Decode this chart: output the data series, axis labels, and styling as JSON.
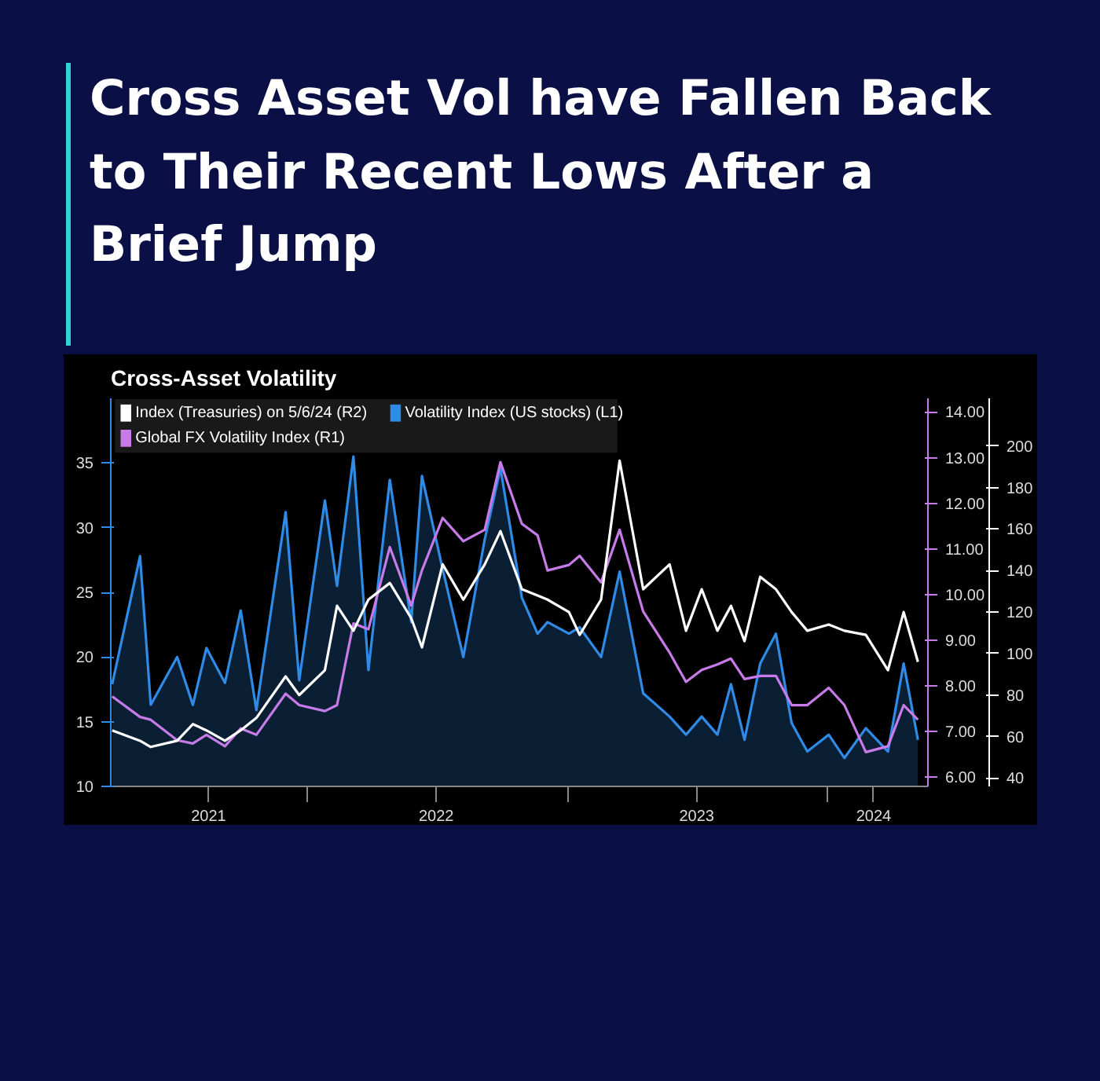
{
  "chart_data": {
    "type": "line",
    "title": "Cross Asset Vol have Fallen Back to Their Recent Lows After a Brief Jump",
    "subtitle": "Cross-Asset Volatility",
    "x": [
      "2021-04-03",
      "2021-05-12",
      "2021-05-27",
      "2021-07-03",
      "2021-07-25",
      "2021-08-13",
      "2021-09-08",
      "2021-09-30",
      "2021-10-22",
      "2021-12-02",
      "2021-12-21",
      "2022-01-26",
      "2022-02-12",
      "2022-03-07",
      "2022-03-28",
      "2022-04-27",
      "2022-05-27",
      "2022-06-11",
      "2022-07-10",
      "2022-08-08",
      "2022-09-07",
      "2022-09-29",
      "2022-10-29",
      "2022-11-20",
      "2022-12-04",
      "2023-01-03",
      "2023-01-18",
      "2023-02-17",
      "2023-03-15",
      "2023-04-17",
      "2023-05-24",
      "2023-06-16",
      "2023-07-08",
      "2023-07-30",
      "2023-08-18",
      "2023-09-06",
      "2023-09-28",
      "2023-10-20",
      "2023-11-11",
      "2023-12-03",
      "2024-01-02",
      "2024-01-24",
      "2024-02-23",
      "2024-03-25",
      "2024-04-16",
      "2024-05-06"
    ],
    "series": [
      {
        "name": "Index (Treasuries) on 5/6/24 (R2)",
        "color": "#ffffff",
        "axis": "y3",
        "values": [
          63,
          58,
          55,
          58,
          66,
          63,
          58,
          63,
          69,
          89,
          80,
          92,
          123,
          111,
          126,
          134,
          117,
          103,
          143,
          126,
          143,
          159,
          131,
          128,
          126,
          120,
          109,
          126,
          193,
          131,
          143,
          111,
          131,
          111,
          123,
          106,
          137,
          131,
          120,
          111,
          114,
          111,
          109,
          92,
          120,
          96
        ]
      },
      {
        "name": "Volatility Index (US stocks) (L1)",
        "color": "#2f8be6",
        "type": "area",
        "values": [
          17.9,
          27.8,
          16.3,
          20,
          16.3,
          20.7,
          18,
          23.6,
          15.9,
          31.2,
          18.2,
          32.1,
          25.5,
          35.5,
          19,
          33.7,
          22.7,
          34,
          26.8,
          20,
          29.1,
          34.6,
          24.6,
          21.8,
          22.7,
          21.8,
          22.3,
          20,
          26.6,
          17.2,
          15.4,
          14,
          15.4,
          14,
          17.9,
          13.6,
          19.5,
          21.8,
          14.9,
          12.7,
          14,
          12.2,
          14.5,
          12.7,
          19.5,
          13.6
        ]
      },
      {
        "name": "Global FX Volatility Index  (R1)",
        "color": "#c77be8",
        "axis": "y2",
        "values": [
          7.77,
          7.32,
          7.26,
          6.81,
          6.74,
          6.93,
          6.68,
          7.07,
          6.93,
          7.83,
          7.58,
          7.45,
          7.58,
          9.37,
          9.24,
          11.04,
          9.76,
          10.53,
          11.68,
          11.17,
          11.42,
          12.9,
          11.55,
          11.3,
          10.53,
          10.65,
          10.85,
          10.27,
          11.42,
          9.63,
          8.73,
          8.09,
          8.35,
          8.47,
          8.6,
          8.15,
          8.22,
          8.22,
          7.58,
          7.58,
          7.96,
          7.58,
          6.55,
          6.68,
          7.58,
          7.26
        ]
      }
    ],
    "xlim": [
      "2021-04-01",
      "2024-05-20"
    ],
    "xticks": [
      {
        "value": "2021-08-16",
        "label": "2021"
      },
      {
        "value": "2022-01-01",
        "label": null
      },
      {
        "value": "2022-07-01",
        "label": "2022"
      },
      {
        "value": "2023-01-01",
        "label": null
      },
      {
        "value": "2023-07-01",
        "label": "2023"
      },
      {
        "value": "2024-01-01",
        "label": null
      },
      {
        "value": "2024-03-05",
        "label": "2024"
      }
    ],
    "ylim": [
      10,
      40
    ],
    "yticks": [
      10,
      15,
      20,
      25,
      30,
      35
    ],
    "y2lim": [
      5.8,
      14.3
    ],
    "y2ticks": [
      {
        "value": 6,
        "label": "6.00"
      },
      {
        "value": 7,
        "label": "7.00"
      },
      {
        "value": 8,
        "label": "8.00"
      },
      {
        "value": 9,
        "label": "9.00"
      },
      {
        "value": 10,
        "label": "10.00"
      },
      {
        "value": 11,
        "label": "11.00"
      },
      {
        "value": 12,
        "label": "12.00"
      },
      {
        "value": 13,
        "label": "13.00"
      },
      {
        "value": 14,
        "label": "14.00"
      }
    ],
    "y3lim": [
      36,
      223
    ],
    "y3ticks": [
      40,
      60,
      80,
      100,
      120,
      140,
      160,
      180,
      200
    ],
    "legend": "top left"
  }
}
